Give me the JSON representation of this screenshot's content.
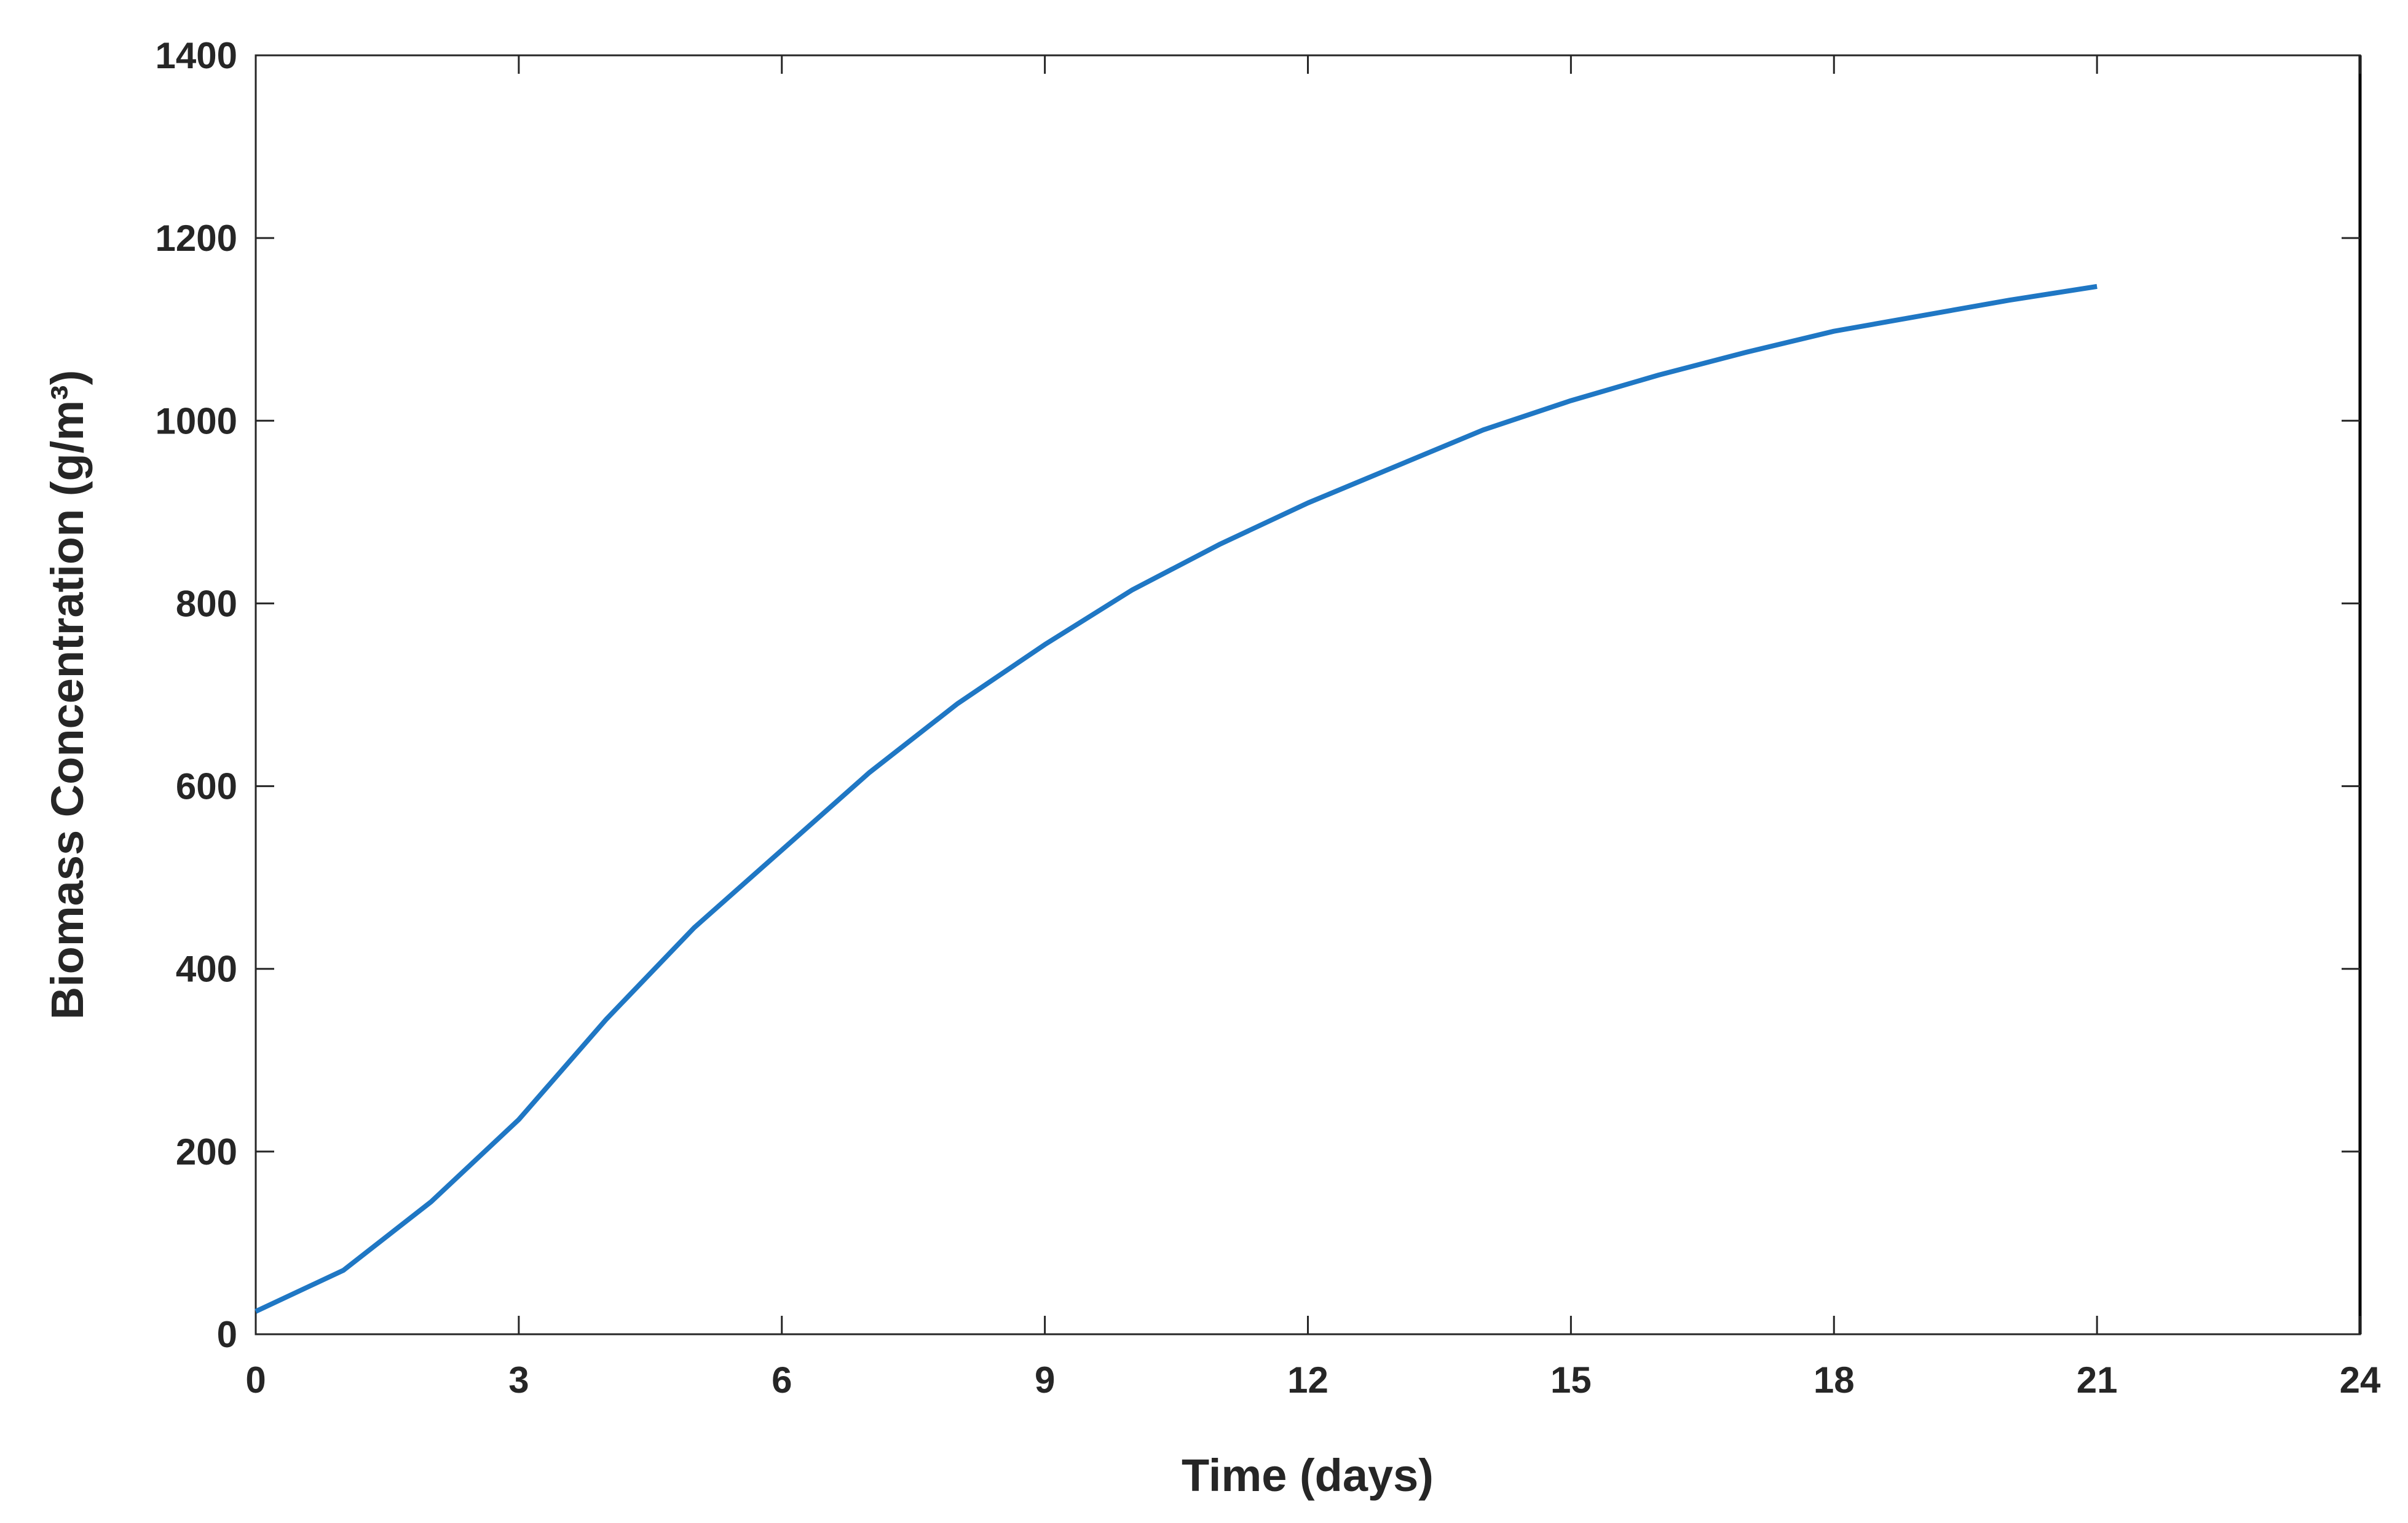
{
  "chart_data": {
    "type": "line",
    "xlabel": "Time (days)",
    "ylabel": "Biomass Concentration (g/m³)",
    "x": [
      0,
      1,
      2,
      3,
      4,
      5,
      6,
      7,
      8,
      9,
      10,
      11,
      12,
      13,
      14,
      15,
      16,
      17,
      18,
      19,
      20,
      21
    ],
    "series": [
      {
        "color": "#1f77c4",
        "values": [
          25,
          70,
          145,
          235,
          345,
          445,
          530,
          615,
          690,
          755,
          815,
          865,
          910,
          950,
          990,
          1022,
          1050,
          1075,
          1098,
          1115,
          1132,
          1147
        ]
      }
    ],
    "xlim": [
      0,
      24
    ],
    "xticks": [
      0,
      3,
      6,
      9,
      12,
      15,
      18,
      21,
      24
    ],
    "ylim": [
      0,
      1400
    ],
    "yticks": [
      0,
      200,
      400,
      600,
      800,
      1000,
      1200,
      1400
    ]
  }
}
